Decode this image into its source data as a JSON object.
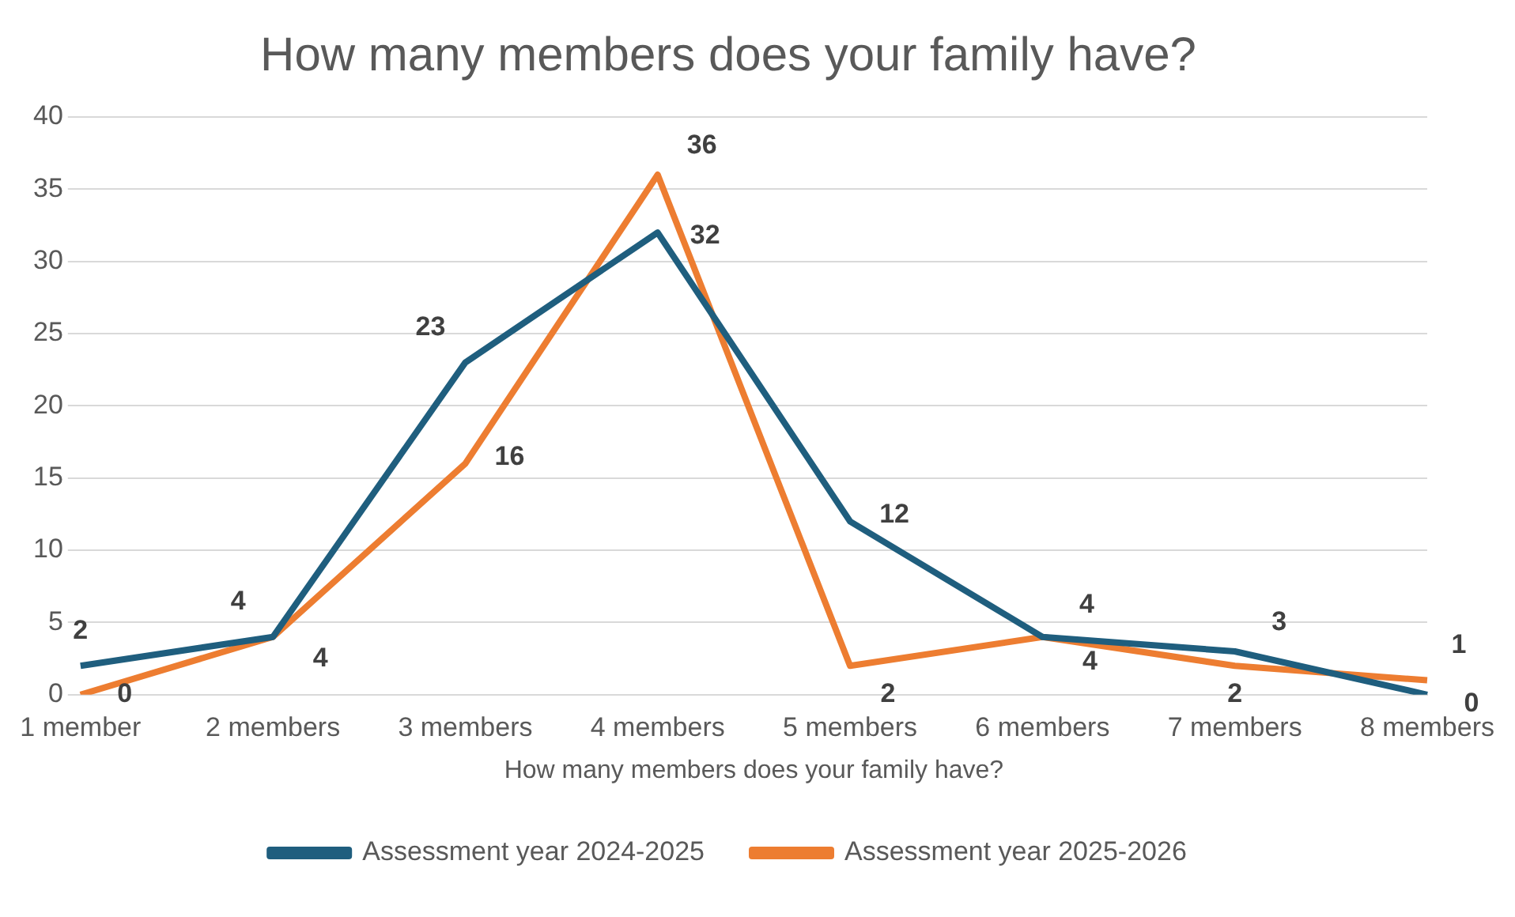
{
  "chart_data": {
    "type": "line",
    "title": "How many members does your family have?",
    "xlabel": "How many members does your family have?",
    "categories": [
      "1 member",
      "2 members",
      "3 members",
      "4 members",
      "5 members",
      "6 members",
      "7 members",
      "8 members"
    ],
    "series": [
      {
        "name": "Assessment year 2024-2025",
        "color": "#1f5e7e",
        "values": [
          2,
          4,
          23,
          32,
          12,
          4,
          3,
          0
        ]
      },
      {
        "name": "Assessment year 2025-2026",
        "color": "#ed7d31",
        "values": [
          0,
          4,
          16,
          36,
          2,
          4,
          2,
          1
        ]
      }
    ],
    "ylim": [
      0,
      40
    ],
    "yticks": [
      0,
      5,
      10,
      15,
      20,
      25,
      30,
      35,
      40
    ],
    "grid": "y",
    "legend": "bottom",
    "marker": "none",
    "line_style": "solid",
    "data_labels": true
  }
}
